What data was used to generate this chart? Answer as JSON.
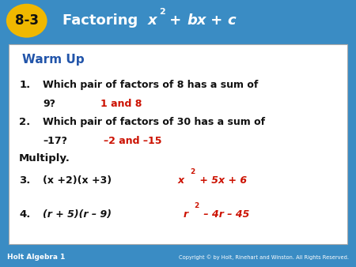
{
  "header_bg_color": "#3a8cc4",
  "header_label_bg": "#f0b800",
  "header_label_text": "8-3",
  "footer_bg_color": "#2e6fa3",
  "footer_left_text": "Holt Algebra 1",
  "footer_right_text": "Copyright © by Holt, Rinehart and Winston. All Rights Reserved.",
  "content_bg": "#ffffff",
  "warm_up_color": "#2255aa",
  "black_text_color": "#111111",
  "red_answer_color": "#cc1100"
}
